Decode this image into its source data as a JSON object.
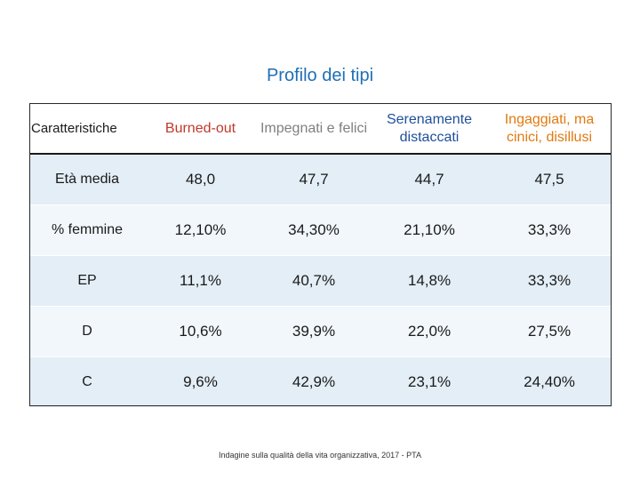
{
  "title": "Profilo dei tipi",
  "table": {
    "headers": [
      "Caratteristiche",
      "Burned-out",
      "Impegnati e felici",
      "Serenamente distaccati",
      "Ingaggiati, ma cinici, disillusi"
    ],
    "header_colors": [
      "#1a1a1a",
      "#c0392b",
      "#7f7f7f",
      "#1f4f9b",
      "#e07a10"
    ],
    "rows": [
      [
        "Età media",
        "48,0",
        "47,7",
        "44,7",
        "47,5"
      ],
      [
        "% femmine",
        "12,10%",
        "34,30%",
        "21,10%",
        "33,3%"
      ],
      [
        "EP",
        "11,1%",
        "40,7%",
        "14,8%",
        "33,3%"
      ],
      [
        "D",
        "10,6%",
        "39,9%",
        "22,0%",
        "27,5%"
      ],
      [
        "C",
        "9,6%",
        "42,9%",
        "23,1%",
        "24,40%"
      ]
    ]
  },
  "footer": "Indagine sulla qualità della vita organizzativa, 2017 - PTA"
}
